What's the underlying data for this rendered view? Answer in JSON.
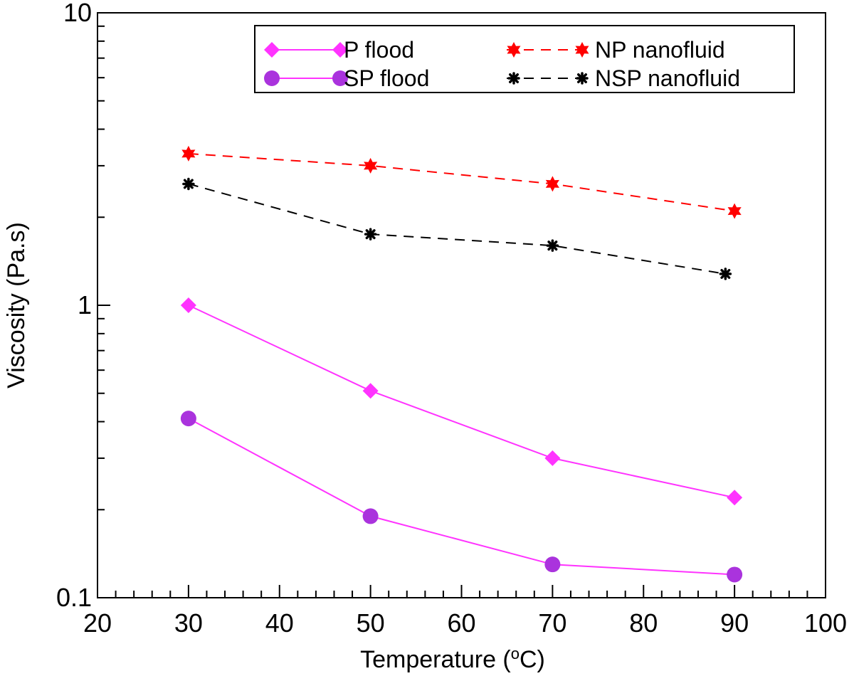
{
  "chart_data": {
    "type": "line",
    "title": "",
    "xlabel": "Temperature (",
    "xlabel_sup": "o",
    "xlabel_end": "C)",
    "ylabel": "Viscosity (Pa.s)",
    "xlim": [
      20,
      100
    ],
    "ylim": [
      0.1,
      10
    ],
    "yscale": "log",
    "x_ticks": [
      20,
      30,
      40,
      50,
      60,
      70,
      80,
      90,
      100
    ],
    "x_tick_labels": [
      "20",
      "30",
      "40",
      "50",
      "60",
      "70",
      "80",
      "90",
      "100"
    ],
    "y_ticks": [
      0.1,
      1,
      10
    ],
    "y_tick_labels": [
      "0.1",
      "1",
      "10"
    ],
    "grid": false,
    "legend_position": "top-right",
    "series": [
      {
        "name": "P flood",
        "color": "#ff33ff",
        "line": "solid",
        "marker": "diamond",
        "x": [
          30,
          50,
          70,
          90
        ],
        "values": [
          1.0,
          0.51,
          0.3,
          0.22
        ]
      },
      {
        "name": "SP flood",
        "color": "#ff33ff",
        "marker_color": "#aa33dd",
        "line": "solid",
        "marker": "circle",
        "x": [
          30,
          50,
          70,
          90
        ],
        "values": [
          0.41,
          0.19,
          0.13,
          0.12
        ]
      },
      {
        "name": "NP nanofluid",
        "color": "#ff0000",
        "line": "dashed",
        "marker": "star",
        "x": [
          30,
          50,
          70,
          90
        ],
        "values": [
          3.3,
          3.0,
          2.6,
          2.1
        ]
      },
      {
        "name": "NSP nanofluid",
        "color": "#000000",
        "line": "dashed",
        "marker": "asterisk",
        "x": [
          30,
          50,
          70,
          89
        ],
        "values": [
          2.6,
          1.75,
          1.6,
          1.28
        ]
      }
    ]
  }
}
